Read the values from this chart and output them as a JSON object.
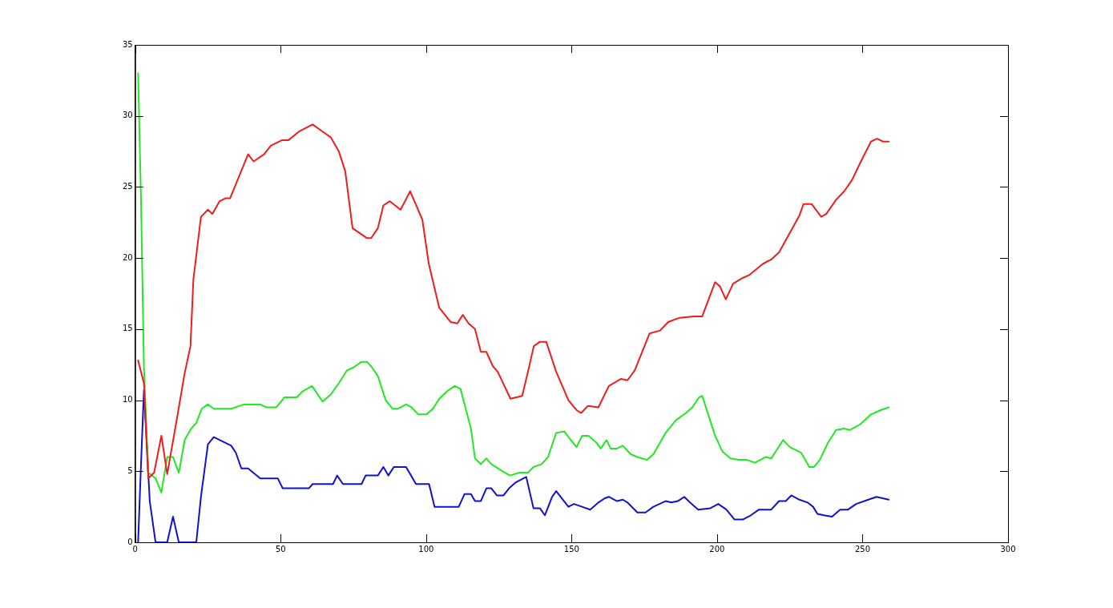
{
  "chart_data": {
    "type": "line",
    "xlim": [
      0,
      300
    ],
    "xticks": [
      0,
      50,
      100,
      150,
      200,
      250,
      300
    ],
    "ylim": [
      0,
      35
    ],
    "yticks": [
      0,
      5,
      10,
      15,
      20,
      25,
      30,
      35
    ],
    "grid": false,
    "legend": false,
    "marker": "none",
    "line_style": "solid",
    "series": [
      {
        "color": "#ee1c1c",
        "x": [
          1,
          3,
          4.5,
          6.5,
          9,
          11,
          14,
          17,
          19,
          20,
          22.6,
          25,
          26.5,
          29,
          31,
          32.6,
          38.8,
          40.7,
          44.3,
          46.6,
          50.5,
          52.7,
          56.3,
          61,
          64.4,
          67.2,
          70,
          72.2,
          74.7,
          79.7,
          81.1,
          83.4,
          85.3,
          87.5,
          91.2,
          94.5,
          98.7,
          100.9,
          104.5,
          108.4,
          110.7,
          112.6,
          114.6,
          116.8,
          118.8,
          120.7,
          122.9,
          124.6,
          129,
          133,
          135,
          137,
          139,
          141.3,
          144.7,
          148.9,
          151.7,
          153.3,
          155.6,
          159.2,
          162.8,
          167,
          169.2,
          171.7,
          176.8,
          180.4,
          183.2,
          187.1,
          192,
          194.9,
          197.1,
          199.3,
          201,
          203,
          205.5,
          208.8,
          211,
          215.8,
          218.6,
          221.3,
          228.3,
          229.7,
          232.5,
          235.8,
          237.5,
          240.9,
          243.7,
          246.4,
          249.2,
          252.9,
          255,
          257,
          259
        ],
        "values": [
          12.8,
          11.2,
          4.5,
          4.9,
          7.5,
          4.8,
          8.3,
          11.9,
          13.8,
          18.5,
          22.9,
          23.4,
          23.1,
          24.0,
          24.2,
          24.2,
          27.3,
          26.8,
          27.3,
          27.9,
          28.3,
          28.3,
          28.9,
          29.4,
          28.9,
          28.5,
          27.5,
          26.1,
          22.1,
          21.4,
          21.4,
          22.1,
          23.7,
          24.0,
          23.4,
          24.7,
          22.7,
          19.6,
          16.5,
          15.5,
          15.4,
          16.0,
          15.4,
          15.0,
          13.4,
          13.4,
          12.4,
          12.0,
          10.1,
          10.3,
          12.0,
          13.8,
          14.1,
          14.1,
          12.0,
          10.0,
          9.3,
          9.1,
          9.6,
          9.5,
          11.0,
          11.5,
          11.4,
          12.1,
          14.7,
          14.9,
          15.5,
          15.8,
          15.9,
          15.9,
          17.1,
          18.3,
          18.0,
          17.1,
          18.2,
          18.6,
          18.8,
          19.6,
          19.9,
          20.4,
          23.0,
          23.8,
          23.8,
          22.9,
          23.1,
          24.1,
          24.7,
          25.5,
          26.7,
          28.2,
          28.4,
          28.2,
          28.2
        ]
      },
      {
        "color": "#22e822",
        "x": [
          1,
          2,
          3,
          4.5,
          7,
          9,
          11,
          13,
          15,
          17,
          19.2,
          21,
          22.9,
          25,
          27,
          33,
          37.4,
          43,
          45,
          48.5,
          51.3,
          55.5,
          57.4,
          60.8,
          64.4,
          67.2,
          70,
          72.8,
          75,
          77.8,
          79.7,
          81.4,
          83.4,
          86.1,
          88.4,
          90.3,
          93.1,
          95,
          97.3,
          100.1,
          102.3,
          104.5,
          107,
          109.8,
          111.8,
          115.4,
          116.8,
          118.8,
          120.7,
          122.4,
          126.3,
          128.8,
          132.1,
          135,
          136.9,
          139.7,
          141.9,
          144.7,
          147.5,
          149.7,
          151.7,
          153.6,
          155.8,
          158.6,
          160,
          162,
          163.4,
          165.6,
          167.6,
          170.3,
          172.6,
          175.9,
          178.1,
          182.3,
          185.9,
          189.3,
          191.5,
          193.8,
          194.9,
          197.1,
          199.3,
          201.8,
          204.6,
          207.4,
          210.2,
          213,
          216.6,
          218.6,
          222.7,
          225,
          228.9,
          231.7,
          233.3,
          235.3,
          238.1,
          240.9,
          243.7,
          245.6,
          249.2,
          252.9,
          256.2,
          259
        ],
        "values": [
          33.0,
          24.1,
          12.3,
          4.9,
          4.5,
          3.5,
          6.0,
          6.0,
          4.9,
          7.2,
          8.0,
          8.4,
          9.4,
          9.7,
          9.4,
          9.4,
          9.7,
          9.7,
          9.5,
          9.5,
          10.2,
          10.2,
          10.6,
          11.0,
          9.9,
          10.4,
          11.2,
          12.1,
          12.3,
          12.7,
          12.7,
          12.3,
          11.7,
          10.0,
          9.4,
          9.4,
          9.7,
          9.5,
          9.0,
          9.0,
          9.4,
          10.1,
          10.6,
          11.0,
          10.8,
          8.0,
          5.9,
          5.5,
          5.9,
          5.5,
          5.0,
          4.7,
          4.9,
          4.9,
          5.3,
          5.5,
          6.0,
          7.7,
          7.8,
          7.2,
          6.7,
          7.5,
          7.5,
          7.0,
          6.6,
          7.2,
          6.6,
          6.6,
          6.8,
          6.2,
          6.0,
          5.8,
          6.2,
          7.7,
          8.6,
          9.1,
          9.5,
          10.2,
          10.3,
          8.9,
          7.5,
          6.4,
          5.9,
          5.8,
          5.8,
          5.6,
          6.0,
          5.9,
          7.2,
          6.7,
          6.3,
          5.3,
          5.3,
          5.8,
          7.0,
          7.9,
          8.0,
          7.9,
          8.3,
          9.0,
          9.3,
          9.5
        ]
      },
      {
        "color": "#1010d0",
        "x": [
          1,
          2,
          3,
          5,
          7,
          11,
          13,
          15,
          21,
          22.6,
          25,
          27,
          33,
          34.6,
          36.5,
          38.8,
          43,
          49,
          50.7,
          59.7,
          61,
          68,
          69.4,
          71.4,
          77.8,
          79.2,
          83.4,
          85.3,
          87,
          88.9,
          93.1,
          96.5,
          101,
          102.9,
          111.2,
          113.2,
          115.4,
          116.8,
          118.8,
          120.7,
          122.4,
          124.3,
          126.6,
          128.5,
          130.7,
          134.4,
          136.9,
          139.1,
          140.8,
          143.3,
          144.7,
          148.9,
          150.8,
          153.6,
          156.4,
          159.2,
          161.4,
          162.8,
          165.6,
          167.6,
          169.2,
          172.6,
          175.4,
          178.1,
          182.3,
          184.3,
          186.5,
          188.7,
          190.7,
          193.5,
          197.7,
          200.4,
          203.2,
          206,
          208.8,
          211.6,
          214.4,
          218.6,
          221.3,
          223.6,
          225.5,
          228.3,
          231.1,
          233,
          234.5,
          236.7,
          239.5,
          242.3,
          245,
          247.8,
          252,
          254.8,
          259
        ],
        "values": [
          0,
          5.5,
          10.7,
          2.9,
          0,
          0,
          1.8,
          0,
          0,
          3.2,
          6.9,
          7.4,
          6.8,
          6.3,
          5.2,
          5.2,
          4.5,
          4.5,
          3.8,
          3.8,
          4.1,
          4.1,
          4.7,
          4.1,
          4.1,
          4.7,
          4.7,
          5.3,
          4.7,
          5.3,
          5.3,
          4.1,
          4.1,
          2.5,
          2.5,
          3.4,
          3.4,
          2.9,
          2.9,
          3.8,
          3.8,
          3.3,
          3.3,
          3.8,
          4.2,
          4.6,
          2.4,
          2.4,
          1.9,
          3.2,
          3.6,
          2.5,
          2.7,
          2.5,
          2.3,
          2.8,
          3.1,
          3.2,
          2.9,
          3.0,
          2.8,
          2.1,
          2.1,
          2.5,
          2.9,
          2.8,
          2.9,
          3.2,
          2.8,
          2.3,
          2.4,
          2.7,
          2.3,
          1.6,
          1.6,
          1.9,
          2.3,
          2.3,
          2.9,
          2.9,
          3.3,
          3.0,
          2.8,
          2.5,
          2.0,
          1.9,
          1.8,
          2.3,
          2.3,
          2.7,
          3.0,
          3.2,
          3.0
        ]
      }
    ]
  }
}
